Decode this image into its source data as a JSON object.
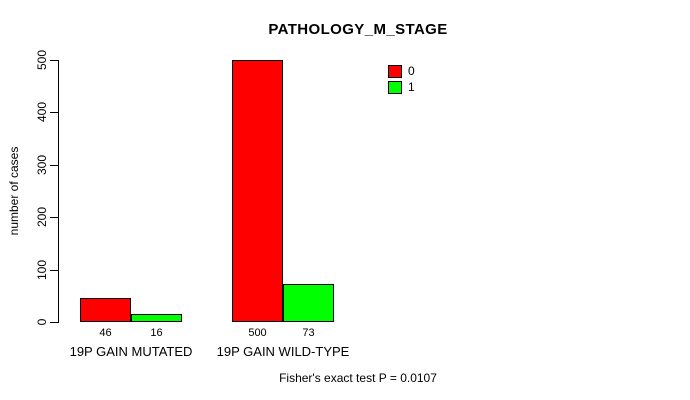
{
  "chart_data": {
    "type": "bar",
    "title": "PATHOLOGY_M_STAGE",
    "ylabel": "number of cases",
    "xlabel": "",
    "categories": [
      "19P GAIN MUTATED",
      "19P GAIN WILD-TYPE"
    ],
    "series": [
      {
        "name": "0",
        "color": "#ff0000",
        "values": [
          46,
          500
        ]
      },
      {
        "name": "1",
        "color": "#00ff00",
        "values": [
          16,
          73
        ]
      }
    ],
    "bar_value_labels": [
      [
        "46",
        "500"
      ],
      [
        "16",
        "73"
      ]
    ],
    "ylim": [
      0,
      500
    ],
    "yticks": [
      0,
      100,
      200,
      300,
      400,
      500
    ],
    "grid": false,
    "legend": {
      "position": "top-right",
      "entries": [
        "0",
        "1"
      ]
    },
    "footnote": "Fisher's exact test P = 0.0107",
    "colors": {
      "bar_red": "#ff0000",
      "bar_green": "#00ff00",
      "axis": "#000000",
      "background": "#ffffff"
    }
  }
}
